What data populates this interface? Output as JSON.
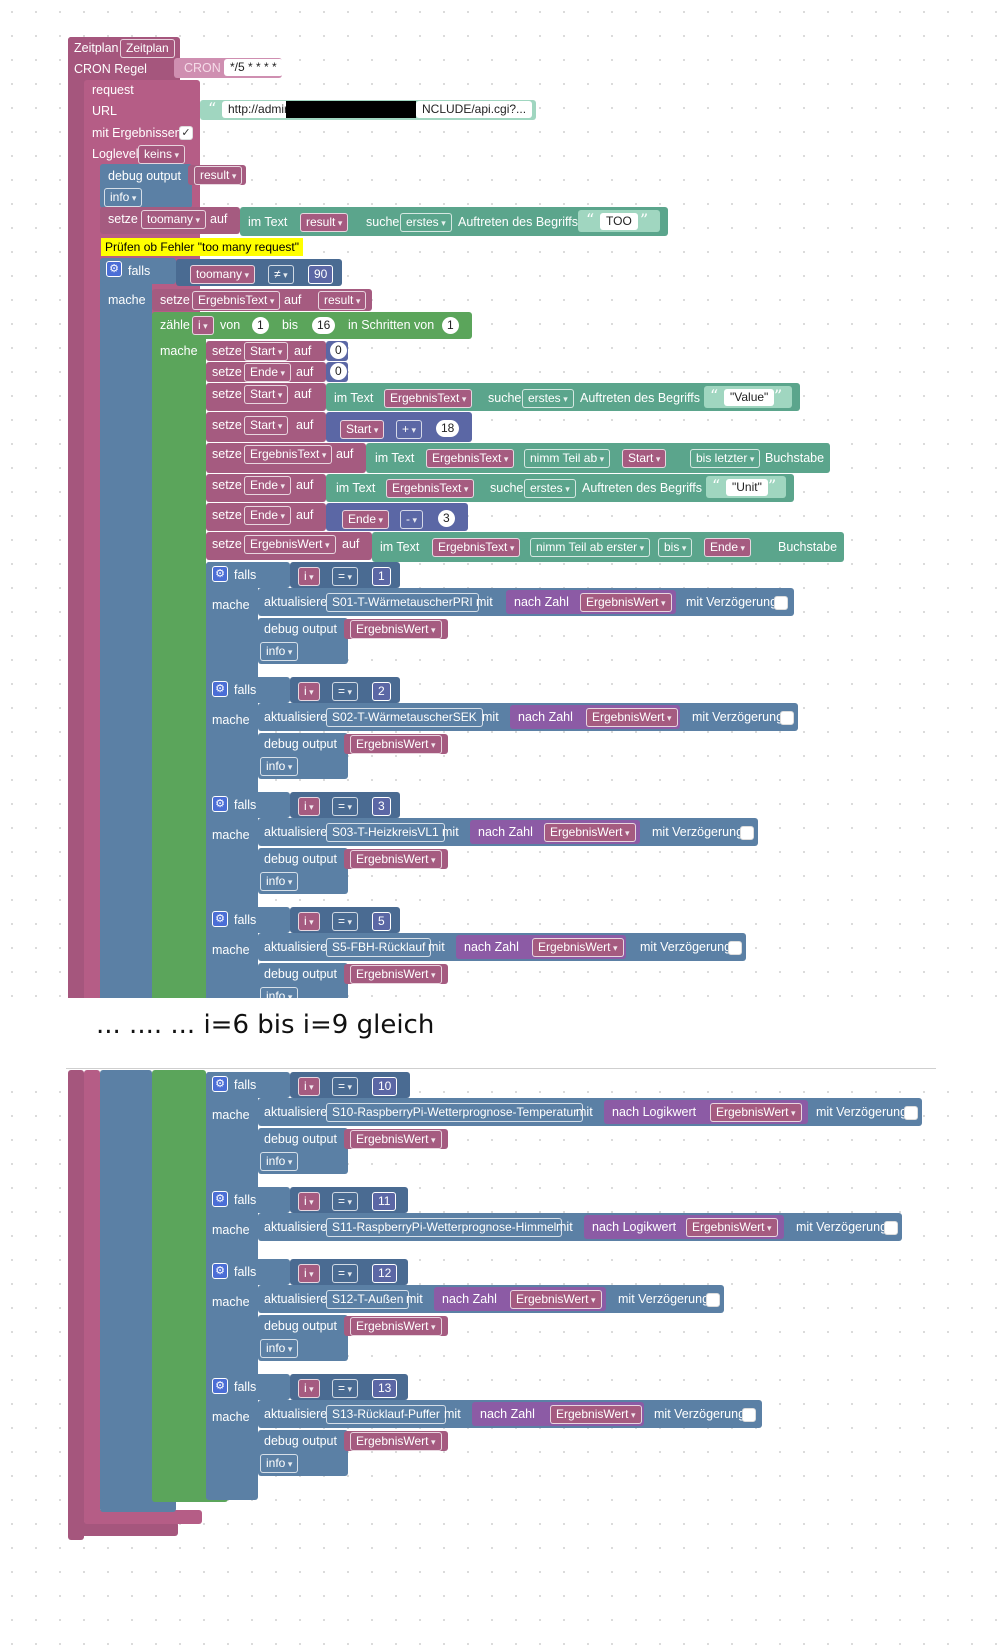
{
  "colors": {
    "schedule": "#a5567d",
    "request": "#b55d86",
    "text": "#5ba58c",
    "loop": "#5ba55b",
    "logic": "#5b80a5",
    "math": "#5b67a5",
    "variable": "#a55b80",
    "convert": "#8c5ba5"
  },
  "schedule": {
    "label": "Zeitplan",
    "value": "Zeitplan",
    "cron_label": "CRON Regel",
    "cron_tag": "CRON",
    "cron_value": "*/5 * * * *"
  },
  "request": {
    "label": "request",
    "url_label": "URL",
    "url_start": "http://admir",
    "url_end": "NCLUDE/api.cgi?...",
    "results_label": "mit Ergebnissen",
    "check": "✓",
    "loglevel_label": "Loglevel",
    "loglevel_value": "keins"
  },
  "debug_top": {
    "label": "debug output",
    "value": "result",
    "level": "info"
  },
  "set_toomany": {
    "setze": "setze",
    "var": "toomany",
    "auf": "auf",
    "imtext": "im Text",
    "text_var": "result",
    "suche": "suche",
    "mode": "erstes",
    "occurrence": "Auftreten des Begriffs",
    "term": "TOO"
  },
  "comment": "Prüfen ob Fehler \"too many request\"",
  "if_main": {
    "falls": "falls",
    "var": "toomany",
    "op": "≠",
    "value": "90",
    "mache": "mache"
  },
  "set_ergtext": {
    "setze": "setze",
    "var": "ErgebnisText",
    "auf": "auf",
    "value": "result"
  },
  "loop": {
    "label": "zähle",
    "var": "i",
    "von": "von",
    "from": "1",
    "bis": "bis",
    "to": "16",
    "step_label": "in Schritten von",
    "step": "1",
    "mache": "mache"
  },
  "start0": {
    "setze": "setze",
    "var": "Start",
    "auf": "auf",
    "value": "0"
  },
  "ende0": {
    "setze": "setze",
    "var": "Ende",
    "auf": "auf",
    "value": "0"
  },
  "start_find": {
    "setze": "setze",
    "var": "Start",
    "auf": "auf",
    "imtext": "im Text",
    "text_var": "ErgebnisText",
    "suche": "suche",
    "mode": "erstes",
    "occurrence": "Auftreten des Begriffs",
    "term": "\"Value\""
  },
  "start_add": {
    "setze": "setze",
    "var": "Start",
    "auf": "auf",
    "left": "Start",
    "op": "+",
    "right": "18"
  },
  "ergtext_sub": {
    "setze": "setze",
    "var": "ErgebnisText",
    "auf": "auf",
    "imtext": "im Text",
    "text_var": "ErgebnisText",
    "take": "nimm Teil ab",
    "from": "Start",
    "to": "bis letzter",
    "unit": "Buchstabe"
  },
  "ende_find": {
    "setze": "setze",
    "var": "Ende",
    "auf": "auf",
    "imtext": "im Text",
    "text_var": "ErgebnisText",
    "suche": "suche",
    "mode": "erstes",
    "occurrence": "Auftreten des Begriffs",
    "term": "\"Unit\""
  },
  "ende_sub": {
    "setze": "setze",
    "var": "Ende",
    "auf": "auf",
    "left": "Ende",
    "op": "-",
    "right": "3"
  },
  "ergwert_sub": {
    "setze": "setze",
    "var": "ErgebnisWert",
    "auf": "auf",
    "imtext": "im Text",
    "text_var": "ErgebnisText",
    "take": "nimm Teil ab erster",
    "to": "bis",
    "end": "Ende",
    "unit": "Buchstabe"
  },
  "common": {
    "falls": "falls",
    "mache": "mache",
    "i": "i",
    "eq": "=",
    "update": "aktualisiere",
    "mit": "mit",
    "delay": "mit Verzögerung",
    "debug": "debug output",
    "wert": "ErgebnisWert",
    "info": "info"
  },
  "cases_top": [
    {
      "n": "1",
      "state": "S01-T-WärmetauscherPRI",
      "conv": "nach Zahl"
    },
    {
      "n": "2",
      "state": "S02-T-WärmetauscherSEK",
      "conv": "nach Zahl"
    },
    {
      "n": "3",
      "state": "S03-T-HeizkreisVL1",
      "conv": "nach Zahl"
    },
    {
      "n": "5",
      "state": "S5-FBH-Rücklauf",
      "conv": "nach Zahl"
    }
  ],
  "gap_note": "... ....  ...  i=6 bis i=9 gleich",
  "cases_bottom": [
    {
      "n": "10",
      "state": "S10-RaspberryPi-Wetterprognose-Temperatur",
      "conv": "nach Logikwert"
    },
    {
      "n": "11",
      "state": "S11-RaspberryPi-Wetterprognose-Himmel",
      "conv": "nach Logikwert"
    },
    {
      "n": "12",
      "state": "S12-T-Außen",
      "conv": "nach Zahl"
    },
    {
      "n": "13",
      "state": "S13-Rücklauf-Puffer",
      "conv": "nach Zahl"
    }
  ]
}
